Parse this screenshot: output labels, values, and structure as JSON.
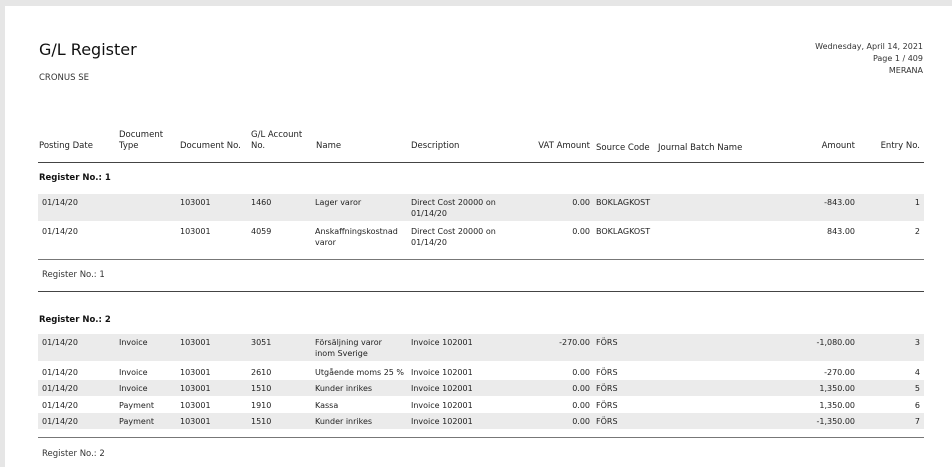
{
  "report": {
    "title": "G/L Register",
    "company": "CRONUS SE",
    "date": "Wednesday, April 14, 2021",
    "page": "Page 1 / 409",
    "user": "MERANA"
  },
  "columns": {
    "posting_date": "Posting Date",
    "document_type": "Document Type",
    "document_no": "Document No.",
    "gl_account_no": "G/L Account No.",
    "name": "Name",
    "description": "Description",
    "vat_amount": "VAT Amount",
    "source_code": "Source Code",
    "journal_batch_name": "Journal Batch Name",
    "amount": "Amount",
    "entry_no": "Entry No."
  },
  "registers": [
    {
      "heading": "Register No.: 1",
      "footer": "Register No.: 1",
      "rows": [
        {
          "posting_date": "01/14/20",
          "document_type": "",
          "document_no": "103001",
          "gl_account_no": "1460",
          "name": "Lager varor",
          "description": "Direct Cost 20000 on 01/14/20",
          "vat_amount": "0.00",
          "source_code": "BOKLAGKOST",
          "journal_batch_name": "",
          "amount": "-843.00",
          "entry_no": "1"
        },
        {
          "posting_date": "01/14/20",
          "document_type": "",
          "document_no": "103001",
          "gl_account_no": "4059",
          "name": "Anskaffningskostnad varor",
          "description": "Direct Cost 20000 on 01/14/20",
          "vat_amount": "0.00",
          "source_code": "BOKLAGKOST",
          "journal_batch_name": "",
          "amount": "843.00",
          "entry_no": "2"
        }
      ]
    },
    {
      "heading": "Register No.: 2",
      "footer": "Register No.: 2",
      "rows": [
        {
          "posting_date": "01/14/20",
          "document_type": "Invoice",
          "document_no": "103001",
          "gl_account_no": "3051",
          "name": "Försäljning varor inom Sverige",
          "description": "Invoice 102001",
          "vat_amount": "-270.00",
          "source_code": "FÖRS",
          "journal_batch_name": "",
          "amount": "-1,080.00",
          "entry_no": "3"
        },
        {
          "posting_date": "01/14/20",
          "document_type": "Invoice",
          "document_no": "103001",
          "gl_account_no": "2610",
          "name": "Utgående moms 25 %",
          "description": "Invoice 102001",
          "vat_amount": "0.00",
          "source_code": "FÖRS",
          "journal_batch_name": "",
          "amount": "-270.00",
          "entry_no": "4"
        },
        {
          "posting_date": "01/14/20",
          "document_type": "Invoice",
          "document_no": "103001",
          "gl_account_no": "1510",
          "name": "Kunder inrikes",
          "description": "Invoice 102001",
          "vat_amount": "0.00",
          "source_code": "FÖRS",
          "journal_batch_name": "",
          "amount": "1,350.00",
          "entry_no": "5"
        },
        {
          "posting_date": "01/14/20",
          "document_type": "Payment",
          "document_no": "103001",
          "gl_account_no": "1910",
          "name": "Kassa",
          "description": "Invoice 102001",
          "vat_amount": "0.00",
          "source_code": "FÖRS",
          "journal_batch_name": "",
          "amount": "1,350.00",
          "entry_no": "6"
        },
        {
          "posting_date": "01/14/20",
          "document_type": "Payment",
          "document_no": "103001",
          "gl_account_no": "1510",
          "name": "Kunder inrikes",
          "description": "Invoice 102001",
          "vat_amount": "0.00",
          "source_code": "FÖRS",
          "journal_batch_name": "",
          "amount": "-1,350.00",
          "entry_no": "7"
        }
      ]
    }
  ]
}
